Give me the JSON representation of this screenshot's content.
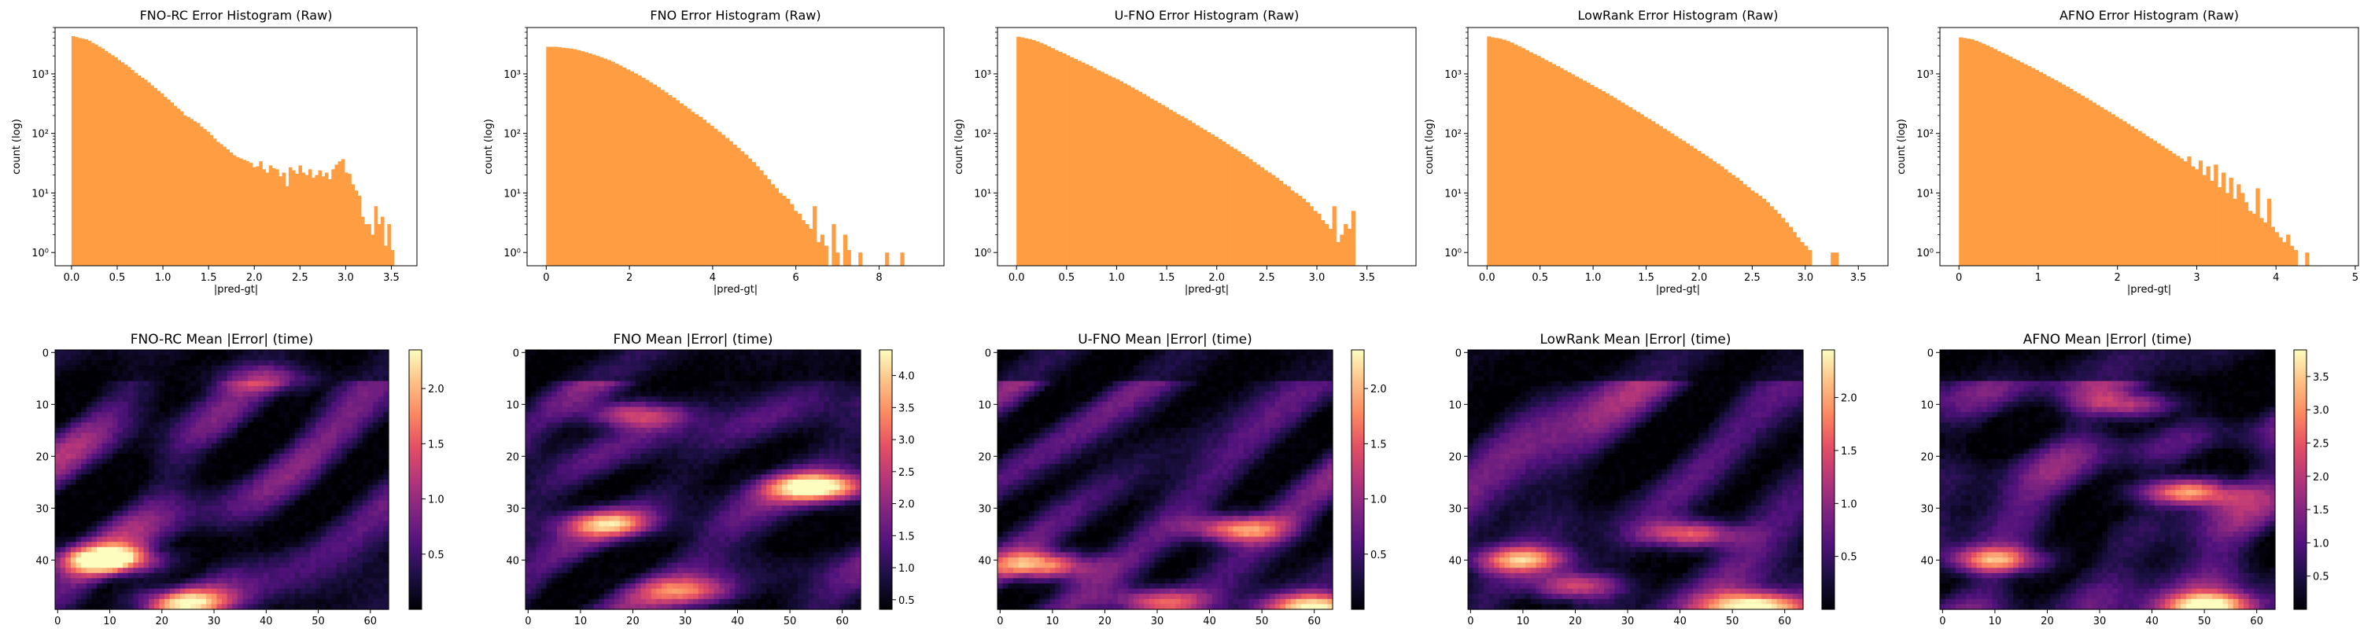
{
  "chart_data": [
    {
      "type": "bar",
      "title": "FNO-RC Error Histogram (Raw)",
      "xlabel": "|pred-gt|",
      "ylabel": "count (log)",
      "yscale": "log",
      "xlim": [
        -0.18,
        3.78
      ],
      "ylim": [
        0.6,
        6000
      ],
      "xticks": [
        0.0,
        0.5,
        1.0,
        1.5,
        2.0,
        2.5,
        3.0,
        3.5
      ],
      "xtick_labels": [
        "0.0",
        "0.5",
        "1.0",
        "1.5",
        "2.0",
        "2.5",
        "3.0",
        "3.5"
      ],
      "yticks": [
        1,
        10,
        100,
        1000
      ],
      "ytick_labels": [
        "10⁰",
        "10¹",
        "10²",
        "10³"
      ],
      "bar_color": "#ff9d42",
      "bin_width": 0.036,
      "bin_start": 0.0,
      "values": [
        4300,
        4150,
        4000,
        3900,
        3800,
        3600,
        3300,
        3100,
        2850,
        2650,
        2420,
        2230,
        2050,
        1900,
        1700,
        1560,
        1430,
        1300,
        1160,
        1040,
        940,
        860,
        800,
        720,
        640,
        580,
        520,
        470,
        410,
        370,
        330,
        290,
        260,
        235,
        200,
        190,
        175,
        160,
        150,
        130,
        118,
        107,
        94,
        82,
        72,
        66,
        60,
        54,
        48,
        43,
        40,
        38,
        36,
        34,
        32,
        27,
        28,
        34,
        25,
        22,
        29,
        26,
        25,
        19,
        22,
        13,
        27,
        24,
        21,
        29,
        22,
        20,
        25,
        18,
        20,
        24,
        19,
        22,
        17,
        25,
        30,
        34,
        37,
        22,
        21,
        14,
        11,
        9,
        4,
        3,
        3,
        2,
        6,
        3,
        4,
        1.3,
        3,
        1.1,
        0,
        0
      ]
    },
    {
      "type": "bar",
      "title": "FNO Error Histogram (Raw)",
      "xlabel": "|pred-gt|",
      "ylabel": "count (log)",
      "yscale": "log",
      "xlim": [
        -0.46,
        9.56
      ],
      "ylim": [
        0.6,
        6000
      ],
      "xticks": [
        0,
        2,
        4,
        6,
        8
      ],
      "xtick_labels": [
        "0",
        "2",
        "4",
        "6",
        "8"
      ],
      "yticks": [
        1,
        10,
        100,
        1000
      ],
      "ytick_labels": [
        "10⁰",
        "10¹",
        "10²",
        "10³"
      ],
      "bar_color": "#ff9d42",
      "bin_width": 0.0915,
      "bin_start": 0.0,
      "values": [
        2850,
        2850,
        2850,
        2800,
        2750,
        2700,
        2650,
        2600,
        2500,
        2400,
        2300,
        2200,
        2100,
        2000,
        1900,
        1800,
        1700,
        1600,
        1480,
        1380,
        1280,
        1180,
        1100,
        1020,
        940,
        860,
        790,
        720,
        660,
        600,
        540,
        490,
        440,
        400,
        360,
        320,
        290,
        260,
        230,
        210,
        190,
        170,
        150,
        135,
        120,
        107,
        95,
        84,
        74,
        65,
        57,
        50,
        44,
        38,
        33,
        28,
        24,
        20,
        17,
        14,
        12,
        10,
        9,
        8,
        6.5,
        5,
        4.5,
        3.5,
        3,
        2.5,
        6,
        1.5,
        2,
        1.3,
        0,
        3,
        1,
        0,
        2,
        1.1,
        0,
        0,
        1,
        0,
        0,
        0,
        0,
        0,
        0,
        1,
        0,
        0,
        0,
        1,
        0,
        0,
        0,
        0,
        0,
        0
      ]
    },
    {
      "type": "bar",
      "title": "U-FNO Error Histogram (Raw)",
      "xlabel": "|pred-gt|",
      "ylabel": "count (log)",
      "yscale": "log",
      "xlim": [
        -0.19,
        3.99
      ],
      "ylim": [
        0.6,
        6000
      ],
      "xticks": [
        0.0,
        0.5,
        1.0,
        1.5,
        2.0,
        2.5,
        3.0,
        3.5
      ],
      "xtick_labels": [
        "0.0",
        "0.5",
        "1.0",
        "1.5",
        "2.0",
        "2.5",
        "3.0",
        "3.5"
      ],
      "yticks": [
        1,
        10,
        100,
        1000
      ],
      "ytick_labels": [
        "10⁰",
        "10¹",
        "10²",
        "10³"
      ],
      "bar_color": "#ff9d42",
      "bin_width": 0.038,
      "bin_start": 0.0,
      "values": [
        4200,
        4100,
        3950,
        3850,
        3700,
        3500,
        3300,
        3100,
        2900,
        2700,
        2500,
        2350,
        2200,
        2050,
        1900,
        1780,
        1660,
        1550,
        1450,
        1350,
        1250,
        1150,
        1080,
        1000,
        930,
        870,
        810,
        750,
        690,
        640,
        590,
        540,
        500,
        460,
        420,
        385,
        355,
        325,
        300,
        275,
        250,
        230,
        210,
        195,
        180,
        165,
        150,
        137,
        125,
        115,
        105,
        96,
        88,
        80,
        73,
        66,
        60,
        55,
        50,
        45,
        41,
        37,
        33,
        30,
        27,
        24,
        22,
        20,
        18,
        16,
        14,
        13,
        11,
        10,
        9,
        8,
        7,
        6,
        5,
        4.5,
        3.5,
        3,
        2.5,
        6,
        1.5,
        2,
        3,
        2.5,
        5,
        0,
        0
      ]
    },
    {
      "type": "bar",
      "title": "LowRank Error Histogram (Raw)",
      "xlabel": "|pred-gt|",
      "ylabel": "count (log)",
      "yscale": "log",
      "xlim": [
        -0.18,
        3.78
      ],
      "ylim": [
        0.6,
        6000
      ],
      "xticks": [
        0.0,
        0.5,
        1.0,
        1.5,
        2.0,
        2.5,
        3.0,
        3.5
      ],
      "xtick_labels": [
        "0.0",
        "0.5",
        "1.0",
        "1.5",
        "2.0",
        "2.5",
        "3.0",
        "3.5"
      ],
      "yticks": [
        1,
        10,
        100,
        1000
      ],
      "ytick_labels": [
        "10⁰",
        "10¹",
        "10²",
        "10³"
      ],
      "bar_color": "#ff9d42",
      "bin_width": 0.036,
      "bin_start": 0.0,
      "values": [
        4250,
        4100,
        4000,
        3900,
        3750,
        3550,
        3350,
        3100,
        2900,
        2700,
        2500,
        2300,
        2150,
        2000,
        1850,
        1700,
        1580,
        1460,
        1350,
        1250,
        1150,
        1060,
        980,
        900,
        830,
        770,
        710,
        650,
        600,
        555,
        510,
        470,
        430,
        395,
        360,
        330,
        300,
        275,
        250,
        230,
        210,
        190,
        175,
        160,
        145,
        132,
        120,
        110,
        100,
        90,
        82,
        75,
        68,
        62,
        56,
        51,
        46,
        42,
        38,
        34,
        31,
        28,
        25,
        22,
        20,
        18,
        16,
        14,
        12.5,
        11,
        10,
        9,
        8,
        7,
        6,
        5.2,
        4.5,
        3.8,
        3.2,
        2.7,
        2.2,
        1.8,
        1.5,
        1.3,
        1.1,
        0,
        0,
        0,
        0,
        0,
        1,
        1,
        0,
        0,
        0,
        0,
        0,
        0,
        0,
        0
      ]
    },
    {
      "type": "bar",
      "title": "AFNO Error Histogram (Raw)",
      "xlabel": "|pred-gt|",
      "ylabel": "count (log)",
      "yscale": "log",
      "xlim": [
        -0.24,
        5.04
      ],
      "ylim": [
        0.6,
        6000
      ],
      "xticks": [
        0,
        1,
        2,
        3,
        4,
        5
      ],
      "xtick_labels": [
        "0",
        "1",
        "2",
        "3",
        "4",
        "5"
      ],
      "yticks": [
        1,
        10,
        100,
        1000
      ],
      "ytick_labels": [
        "10⁰",
        "10¹",
        "10²",
        "10³"
      ],
      "bar_color": "#ff9d42",
      "bin_width": 0.048,
      "bin_start": 0.0,
      "values": [
        4100,
        4000,
        3900,
        3800,
        3600,
        3400,
        3200,
        3000,
        2800,
        2600,
        2400,
        2250,
        2100,
        1950,
        1800,
        1680,
        1560,
        1450,
        1350,
        1250,
        1160,
        1070,
        990,
        910,
        840,
        780,
        720,
        660,
        610,
        560,
        510,
        470,
        430,
        395,
        360,
        330,
        300,
        275,
        250,
        230,
        210,
        190,
        175,
        160,
        145,
        132,
        120,
        110,
        100,
        90,
        82,
        75,
        68,
        62,
        56,
        51,
        46,
        42,
        38,
        34,
        41,
        28,
        25,
        35,
        20,
        28,
        16,
        30,
        12.5,
        22,
        10,
        18,
        8,
        14,
        10,
        7,
        5,
        4.5,
        12,
        3.8,
        3.2,
        8,
        2.7,
        2.2,
        1.8,
        1.5,
        2,
        1.3,
        1.1,
        0,
        0,
        1,
        0,
        0,
        0,
        0,
        0,
        0,
        0,
        0
      ]
    }
  ],
  "heatmaps": [
    {
      "title": "FNO-RC Mean |Error| (time)",
      "colorbar_ticks": [
        0.5,
        1.0,
        1.5,
        2.0
      ],
      "colorbar_labels": [
        "0.5",
        "1.0",
        "1.5",
        "2.0"
      ],
      "vmin": 0.0,
      "vmax": 2.35,
      "seed": 11,
      "blobs": [
        [
          10,
          40,
          2.3
        ],
        [
          24,
          48,
          1.5
        ],
        [
          40,
          5,
          0.9
        ]
      ]
    },
    {
      "title": "FNO Mean |Error| (time)",
      "colorbar_ticks": [
        0.5,
        1.0,
        1.5,
        2.0,
        2.5,
        3.0,
        3.5,
        4.0
      ],
      "colorbar_labels": [
        "0.5",
        "1.0",
        "1.5",
        "2.0",
        "2.5",
        "3.0",
        "3.5",
        "4.0"
      ],
      "vmin": 0.35,
      "vmax": 4.4,
      "seed": 23,
      "blobs": [
        [
          55,
          26,
          4.2
        ],
        [
          20,
          12,
          2.6
        ],
        [
          15,
          33,
          3.0
        ],
        [
          30,
          46,
          2.2
        ]
      ]
    },
    {
      "title": "U-FNO Mean |Error| (time)",
      "colorbar_ticks": [
        0.5,
        1.0,
        1.5,
        2.0
      ],
      "colorbar_labels": [
        "0.5",
        "1.0",
        "1.5",
        "2.0"
      ],
      "vmin": 0.0,
      "vmax": 2.35,
      "seed": 37,
      "blobs": [
        [
          8,
          41,
          1.9
        ],
        [
          45,
          34,
          1.7
        ],
        [
          30,
          48,
          1.4
        ],
        [
          60,
          49,
          2.2
        ]
      ]
    },
    {
      "title": "LowRank Mean |Error| (time)",
      "colorbar_ticks": [
        0.5,
        1.0,
        1.5,
        2.0
      ],
      "colorbar_labels": [
        "0.5",
        "1.0",
        "1.5",
        "2.0"
      ],
      "vmin": 0.0,
      "vmax": 2.45,
      "seed": 53,
      "blobs": [
        [
          10,
          40,
          1.8
        ],
        [
          42,
          35,
          1.6
        ],
        [
          55,
          49,
          2.3
        ],
        [
          20,
          45,
          1.4
        ]
      ]
    },
    {
      "title": "AFNO Mean |Error| (time)",
      "colorbar_ticks": [
        0.5,
        1.0,
        1.5,
        2.0,
        2.5,
        3.0,
        3.5
      ],
      "colorbar_labels": [
        "0.5",
        "1.0",
        "1.5",
        "2.0",
        "2.5",
        "3.0",
        "3.5"
      ],
      "vmin": 0.0,
      "vmax": 3.9,
      "seed": 71,
      "blobs": [
        [
          10,
          40,
          2.9
        ],
        [
          47,
          27,
          3.2
        ],
        [
          52,
          49,
          3.5
        ],
        [
          35,
          10,
          2.0
        ]
      ]
    }
  ],
  "heatmap_axes": {
    "xticks": [
      0,
      10,
      20,
      30,
      40,
      50,
      60
    ],
    "xtick_labels": [
      "0",
      "10",
      "20",
      "30",
      "40",
      "50",
      "60"
    ],
    "yticks": [
      0,
      10,
      20,
      30,
      40
    ],
    "ytick_labels": [
      "0",
      "10",
      "20",
      "30",
      "40"
    ],
    "nx": 64,
    "ny": 50
  }
}
